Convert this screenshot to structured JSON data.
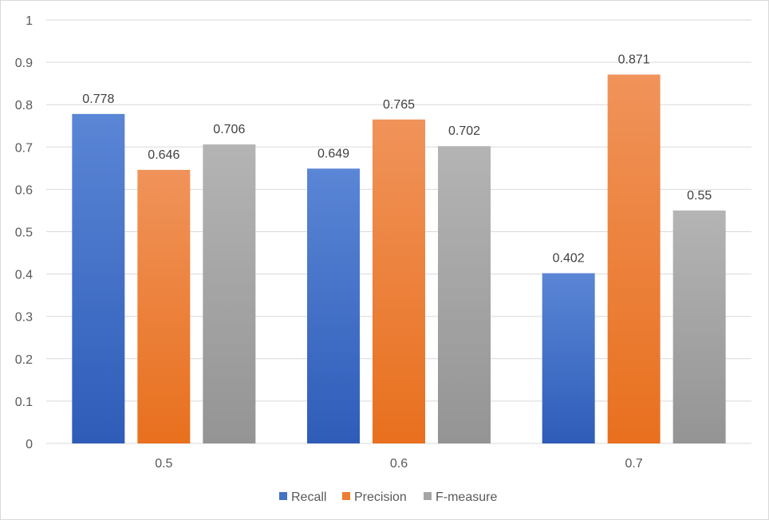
{
  "chart_data": {
    "type": "bar",
    "title": "",
    "xlabel": "",
    "ylabel": "",
    "categories": [
      "0.5",
      "0.6",
      "0.7"
    ],
    "series": [
      {
        "name": "Recall",
        "values": [
          0.778,
          0.649,
          0.402
        ],
        "color": "#4472c4",
        "gradient": [
          "#5b86d6",
          "#2e5cb8"
        ]
      },
      {
        "name": "Precision",
        "values": [
          0.646,
          0.765,
          0.871
        ],
        "color": "#ed7d31",
        "gradient": [
          "#f0935a",
          "#e8701e"
        ]
      },
      {
        "name": "F-measure",
        "values": [
          0.706,
          0.702,
          0.55
        ],
        "color": "#a5a5a5",
        "gradient": [
          "#b4b4b4",
          "#949494"
        ]
      }
    ],
    "data_labels": [
      [
        "0.778",
        "0.649",
        "0.402"
      ],
      [
        "0.646",
        "0.765",
        "0.871"
      ],
      [
        "0.706",
        "0.702",
        "0.55"
      ]
    ],
    "yticks": [
      "0",
      "0.1",
      "0.2",
      "0.3",
      "0.4",
      "0.5",
      "0.6",
      "0.7",
      "0.8",
      "0.9",
      "1"
    ],
    "ylim": [
      0,
      1
    ],
    "grid": true,
    "legend_position": "bottom"
  }
}
